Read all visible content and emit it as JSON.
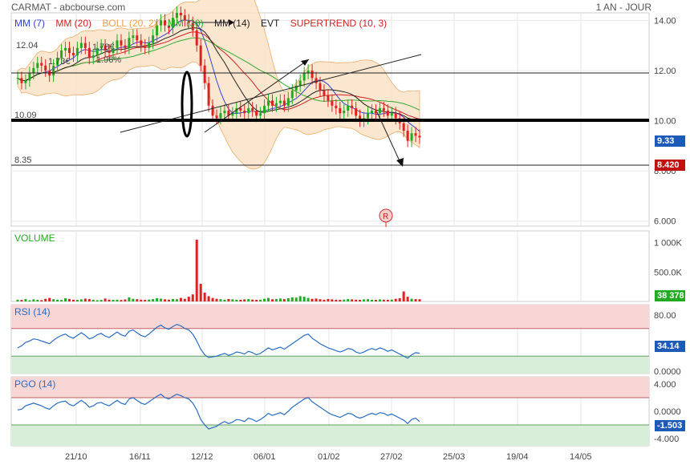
{
  "header": {
    "title": "CARMAT - abcbourse.com",
    "period": "1 AN - JOUR"
  },
  "legend": [
    {
      "label": "MM (7)",
      "color": "#3344cc"
    },
    {
      "label": "MM (20)",
      "color": "#cc2222"
    },
    {
      "label": "BOLL (20, 2)",
      "color": "#e8a050"
    },
    {
      "label": "MM (30)",
      "color": "#33aa33"
    },
    {
      "label": "MM (14)",
      "color": "#222222"
    },
    {
      "label": "EVT",
      "color": "#222222"
    },
    {
      "label": "SUPERTREND (10, 3)",
      "color": "#cc2222"
    }
  ],
  "price_labels": {
    "level_high": "10.09",
    "level_low": "8.35",
    "ann1": "12.04",
    "ann2": "1.73€",
    "ann3": "1.78€",
    "ann4": "1.96%"
  },
  "badges": {
    "last_price": "9.33",
    "supertrend": "8.420",
    "volume": "38 378",
    "rsi": "34.14",
    "pgo": "-1.503"
  },
  "panels": {
    "volume": "VOLUME",
    "rsi": "RSI (14)",
    "pgo": "PGO (14)"
  },
  "marker": "R",
  "colors": {
    "up": "#22aa22",
    "down": "#dd2222",
    "badge_blue": "#1e5bb8",
    "badge_red": "#c01010",
    "badge_green": "#22aa22",
    "line_blue": "#2a6cc0"
  },
  "chart_data": {
    "type": "candlestick",
    "x_ticks": [
      "21/10",
      "16/11",
      "12/12",
      "06/01",
      "01/02",
      "27/02",
      "25/03",
      "19/04",
      "14/05"
    ],
    "price_axis": {
      "ticks": [
        "14.00",
        "12.00",
        "10.00",
        "8.000",
        "6.000"
      ],
      "range": [
        5.8,
        14.3
      ]
    },
    "volume_axis": {
      "ticks": [
        "1 000K",
        "500.0K"
      ],
      "range": [
        0,
        1200000
      ]
    },
    "rsi_axis": {
      "ticks": [
        "80.00",
        "0.0000"
      ],
      "range": [
        0,
        100
      ]
    },
    "pgo_axis": {
      "ticks": [
        "4.000",
        "0.0000",
        "-4.000"
      ],
      "range": [
        -5,
        5
      ]
    },
    "close": [
      11.7,
      11.5,
      11.6,
      11.9,
      12.1,
      12.3,
      12.2,
      12.0,
      11.8,
      12.2,
      12.5,
      12.8,
      12.9,
      12.7,
      12.6,
      12.9,
      13.1,
      12.9,
      12.5,
      12.6,
      12.9,
      13.0,
      12.8,
      12.7,
      12.9,
      13.2,
      13.0,
      12.9,
      13.3,
      13.4,
      13.2,
      13.0,
      12.9,
      13.1,
      13.4,
      13.8,
      14.0,
      13.8,
      13.7,
      14.1,
      14.3,
      14.2,
      14.0,
      13.9,
      13.6,
      13.0,
      12.2,
      11.5,
      10.6,
      10.2,
      10.1,
      10.3,
      10.4,
      10.2,
      10.3,
      10.5,
      10.4,
      10.3,
      10.5,
      10.4,
      10.2,
      10.3,
      10.6,
      10.8,
      10.6,
      10.7,
      10.8,
      10.6,
      10.9,
      11.2,
      11.4,
      11.6,
      11.9,
      12.0,
      11.7,
      11.5,
      11.2,
      11.0,
      10.8,
      10.6,
      10.5,
      10.3,
      10.4,
      10.6,
      10.5,
      10.2,
      10.0,
      10.1,
      10.3,
      10.4,
      10.3,
      10.5,
      10.4,
      10.2,
      10.3,
      10.1,
      9.9,
      9.6,
      9.2,
      9.5,
      9.4,
      9.33
    ],
    "volume": [
      30000,
      25000,
      40000,
      20000,
      35000,
      28000,
      22000,
      45000,
      60000,
      38000,
      30000,
      25000,
      55000,
      42000,
      30000,
      28000,
      35000,
      48000,
      40000,
      30000,
      22000,
      26000,
      50000,
      32000,
      28000,
      30000,
      25000,
      35000,
      70000,
      45000,
      38000,
      30000,
      26000,
      32000,
      40000,
      55000,
      48000,
      36000,
      30000,
      42000,
      38000,
      60000,
      45000,
      80000,
      120000,
      1050000,
      300000,
      150000,
      90000,
      60000,
      45000,
      38000,
      30000,
      42000,
      36000,
      30000,
      28000,
      35000,
      40000,
      32000,
      28000,
      30000,
      45000,
      60000,
      38000,
      42000,
      50000,
      40000,
      55000,
      70000,
      65000,
      90000,
      80000,
      60000,
      45000,
      50000,
      38000,
      30000,
      42000,
      36000,
      30000,
      28000,
      32000,
      40000,
      36000,
      30000,
      28000,
      35000,
      38000,
      30000,
      28000,
      34000,
      30000,
      28000,
      32000,
      45000,
      55000,
      170000,
      80000,
      45000,
      40000,
      38378
    ],
    "rsi": [
      42,
      45,
      50,
      52,
      55,
      54,
      52,
      50,
      48,
      53,
      57,
      60,
      62,
      58,
      56,
      60,
      64,
      60,
      55,
      57,
      61,
      63,
      59,
      57,
      61,
      65,
      61,
      59,
      66,
      68,
      64,
      60,
      58,
      62,
      67,
      72,
      75,
      71,
      69,
      73,
      76,
      74,
      70,
      68,
      62,
      52,
      40,
      32,
      28,
      29,
      30,
      32,
      34,
      31,
      33,
      36,
      35,
      33,
      37,
      35,
      32,
      34,
      38,
      42,
      39,
      41,
      43,
      40,
      44,
      48,
      52,
      56,
      60,
      62,
      56,
      52,
      48,
      45,
      42,
      40,
      38,
      36,
      38,
      41,
      40,
      36,
      34,
      36,
      39,
      41,
      39,
      42,
      40,
      37,
      39,
      36,
      33,
      30,
      27,
      32,
      35,
      34.14
    ],
    "pgo": [
      0.2,
      0.3,
      0.8,
      1.0,
      1.2,
      1.0,
      0.8,
      0.5,
      0.3,
      0.8,
      1.2,
      1.4,
      1.5,
      1.0,
      0.8,
      1.2,
      1.6,
      1.2,
      0.6,
      0.8,
      1.2,
      1.3,
      1.0,
      0.8,
      1.2,
      1.6,
      1.2,
      1.0,
      1.8,
      2.0,
      1.6,
      1.2,
      1.0,
      1.4,
      1.8,
      2.2,
      2.5,
      2.0,
      1.8,
      2.2,
      2.5,
      2.3,
      2.0,
      1.8,
      1.2,
      0.2,
      -1.2,
      -2.0,
      -2.6,
      -2.4,
      -2.2,
      -1.8,
      -1.5,
      -1.8,
      -1.6,
      -1.2,
      -1.3,
      -1.5,
      -1.0,
      -1.2,
      -1.5,
      -1.2,
      -0.8,
      -0.3,
      -0.6,
      -0.4,
      -0.2,
      -0.5,
      0.0,
      0.6,
      1.0,
      1.4,
      1.8,
      2.0,
      1.4,
      1.0,
      0.6,
      0.2,
      -0.2,
      -0.5,
      -0.7,
      -0.9,
      -0.6,
      -0.3,
      -0.4,
      -0.8,
      -1.0,
      -0.8,
      -0.5,
      -0.3,
      -0.5,
      -0.2,
      -0.3,
      -0.6,
      -0.4,
      -0.7,
      -1.0,
      -1.3,
      -1.8,
      -1.2,
      -1.0,
      -1.503
    ]
  }
}
